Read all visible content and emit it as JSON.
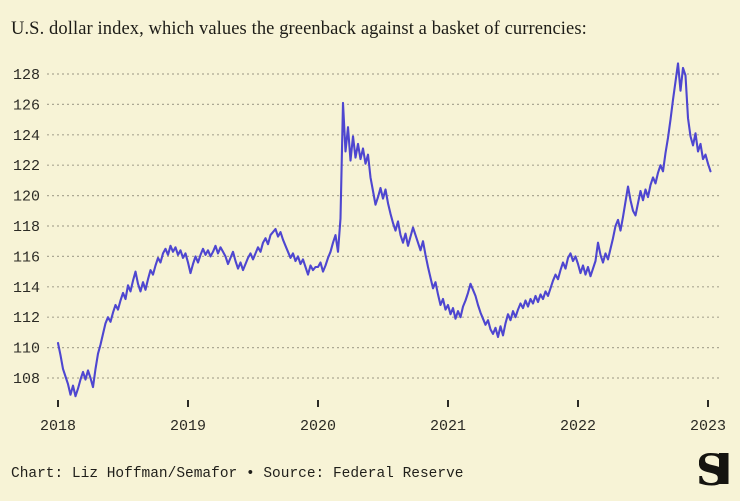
{
  "chart_data": {
    "type": "line",
    "title": "U.S. dollar index, which values the greenback against a basket of currencies:",
    "x_tick_labels": [
      "2018",
      "2019",
      "2020",
      "2021",
      "2022",
      "2023"
    ],
    "y_ticks": [
      108,
      110,
      112,
      114,
      116,
      118,
      120,
      122,
      124,
      126,
      128
    ],
    "ylim": [
      106.3,
      129.6
    ],
    "xlim": [
      2017.92,
      2023.12
    ],
    "grid": "dotted-horizontal-only",
    "legend": "none",
    "line_color": "#4e46d0",
    "series": [
      {
        "name": "U.S. dollar index",
        "x_start_year": 2018,
        "points_per_year": 52,
        "values": [
          110.3,
          109.5,
          108.6,
          108.1,
          107.6,
          106.9,
          107.5,
          106.8,
          107.3,
          107.9,
          108.4,
          107.9,
          108.5,
          108.0,
          107.4,
          108.6,
          109.6,
          110.2,
          110.9,
          111.6,
          112.0,
          111.7,
          112.3,
          112.8,
          112.5,
          113.1,
          113.6,
          113.2,
          114.1,
          113.7,
          114.4,
          115.0,
          114.2,
          113.7,
          114.3,
          113.8,
          114.5,
          115.1,
          114.8,
          115.4,
          115.9,
          115.6,
          116.2,
          116.5,
          116.1,
          116.7,
          116.3,
          116.6,
          116.1,
          116.4,
          115.9,
          116.2,
          115.6,
          114.9,
          115.5,
          116.0,
          115.6,
          116.1,
          116.5,
          116.1,
          116.4,
          116.0,
          116.3,
          116.7,
          116.2,
          116.6,
          116.3,
          116.0,
          115.5,
          115.9,
          116.3,
          115.7,
          115.2,
          115.6,
          115.1,
          115.5,
          115.9,
          116.2,
          115.8,
          116.2,
          116.6,
          116.3,
          116.9,
          117.2,
          116.8,
          117.4,
          117.6,
          117.8,
          117.3,
          117.6,
          117.1,
          116.7,
          116.3,
          115.9,
          116.2,
          115.7,
          116.0,
          115.5,
          115.8,
          115.3,
          114.8,
          115.4,
          115.1,
          115.3,
          115.3,
          115.6,
          115.0,
          115.4,
          115.9,
          116.3,
          116.9,
          117.4,
          116.3,
          118.5,
          126.1,
          122.9,
          124.5,
          122.3,
          123.9,
          122.5,
          123.4,
          122.4,
          123.1,
          122.1,
          122.7,
          121.2,
          120.3,
          119.4,
          119.9,
          120.5,
          119.8,
          120.4,
          119.5,
          118.8,
          118.2,
          117.7,
          118.3,
          117.4,
          116.9,
          117.5,
          116.7,
          117.3,
          117.9,
          117.4,
          116.9,
          116.4,
          117.0,
          116.1,
          115.3,
          114.6,
          113.9,
          114.3,
          113.5,
          112.8,
          113.2,
          112.5,
          112.8,
          112.2,
          112.6,
          111.9,
          112.4,
          112.0,
          112.7,
          113.1,
          113.6,
          114.2,
          113.8,
          113.4,
          112.8,
          112.3,
          111.9,
          111.5,
          111.8,
          111.2,
          110.9,
          111.3,
          110.7,
          111.4,
          110.8,
          111.6,
          112.2,
          111.8,
          112.4,
          112.0,
          112.5,
          112.9,
          112.6,
          113.1,
          112.7,
          113.2,
          112.9,
          113.4,
          113.0,
          113.5,
          113.2,
          113.7,
          113.4,
          113.9,
          114.4,
          114.8,
          114.5,
          115.1,
          115.6,
          115.2,
          115.9,
          116.2,
          115.7,
          116.0,
          115.5,
          114.9,
          115.4,
          114.8,
          115.3,
          114.7,
          115.2,
          115.7,
          116.9,
          116.1,
          115.6,
          116.2,
          115.8,
          116.5,
          117.2,
          118.0,
          118.4,
          117.7,
          118.6,
          119.6,
          120.6,
          119.7,
          119.0,
          118.7,
          119.5,
          120.3,
          119.7,
          120.4,
          119.9,
          120.7,
          121.2,
          120.8,
          121.5,
          122.0,
          121.6,
          122.8,
          123.8,
          125.0,
          126.3,
          127.5,
          128.7,
          126.9,
          128.4,
          127.9,
          125.1,
          123.9,
          123.3,
          124.1,
          122.9,
          123.4,
          122.4,
          122.7,
          122.1,
          121.6
        ]
      }
    ]
  },
  "footer": {
    "credit": "Chart: Liz Hoffman/Semafor • Source: Federal Reserve"
  },
  "logo": {
    "letter": "S"
  },
  "colors": {
    "background": "#f7f3d6",
    "grid": "#aca893",
    "axis_text": "#2c2b25",
    "title_text": "#1d1c17",
    "line": "#4e46d0",
    "logo": "#151410"
  }
}
